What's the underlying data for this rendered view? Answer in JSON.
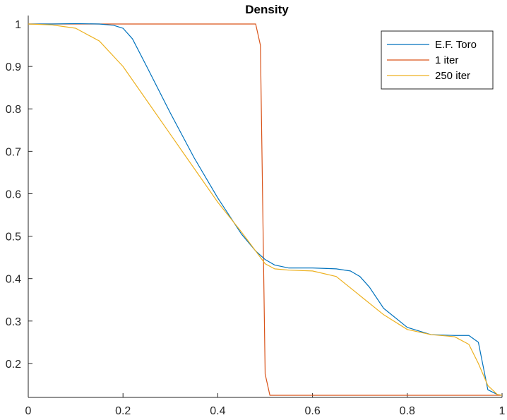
{
  "chart_data": {
    "type": "line",
    "title": "Density",
    "xlabel": "",
    "ylabel": "",
    "xlim": [
      0,
      1
    ],
    "ylim": [
      0.12,
      1.02
    ],
    "xticks": [
      0,
      0.2,
      0.4,
      0.6,
      0.8,
      1
    ],
    "xtick_labels": [
      "0",
      "0.2",
      "0.4",
      "0.6",
      "0.8",
      "1"
    ],
    "yticks": [
      0.2,
      0.3,
      0.4,
      0.5,
      0.6,
      0.7,
      0.8,
      0.9,
      1
    ],
    "ytick_labels": [
      "0.2",
      "0.3",
      "0.4",
      "0.5",
      "0.6",
      "0.7",
      "0.8",
      "0.9",
      "1"
    ],
    "grid": false,
    "legend_position": "top-right",
    "series": [
      {
        "name": "E.F. Toro",
        "color": "#0072BD",
        "x": [
          0,
          0.05,
          0.1,
          0.15,
          0.18,
          0.2,
          0.22,
          0.25,
          0.3,
          0.35,
          0.4,
          0.45,
          0.48,
          0.5,
          0.52,
          0.55,
          0.6,
          0.65,
          0.68,
          0.7,
          0.72,
          0.75,
          0.8,
          0.85,
          0.9,
          0.93,
          0.95,
          0.97,
          0.99,
          1.0
        ],
        "y": [
          1.0,
          1.0,
          1.001,
          1.0,
          0.997,
          0.99,
          0.965,
          0.9,
          0.79,
          0.685,
          0.59,
          0.505,
          0.465,
          0.445,
          0.432,
          0.425,
          0.425,
          0.423,
          0.418,
          0.405,
          0.38,
          0.33,
          0.285,
          0.268,
          0.266,
          0.266,
          0.25,
          0.138,
          0.127,
          0.125
        ]
      },
      {
        "name": "1 iter",
        "color": "#D95319",
        "x": [
          0,
          0.48,
          0.49,
          0.5,
          0.51,
          1.0
        ],
        "y": [
          1.0,
          1.0,
          0.95,
          0.175,
          0.125,
          0.125
        ]
      },
      {
        "name": "250 iter",
        "color": "#EDB120",
        "x": [
          0,
          0.05,
          0.1,
          0.15,
          0.2,
          0.25,
          0.3,
          0.35,
          0.4,
          0.45,
          0.48,
          0.5,
          0.52,
          0.55,
          0.6,
          0.65,
          0.7,
          0.75,
          0.8,
          0.85,
          0.9,
          0.93,
          0.95,
          0.97,
          0.99,
          1.0
        ],
        "y": [
          1.0,
          0.998,
          0.99,
          0.96,
          0.9,
          0.82,
          0.74,
          0.66,
          0.58,
          0.51,
          0.465,
          0.435,
          0.423,
          0.42,
          0.418,
          0.405,
          0.36,
          0.315,
          0.28,
          0.268,
          0.263,
          0.245,
          0.2,
          0.148,
          0.127,
          0.125
        ]
      }
    ]
  }
}
